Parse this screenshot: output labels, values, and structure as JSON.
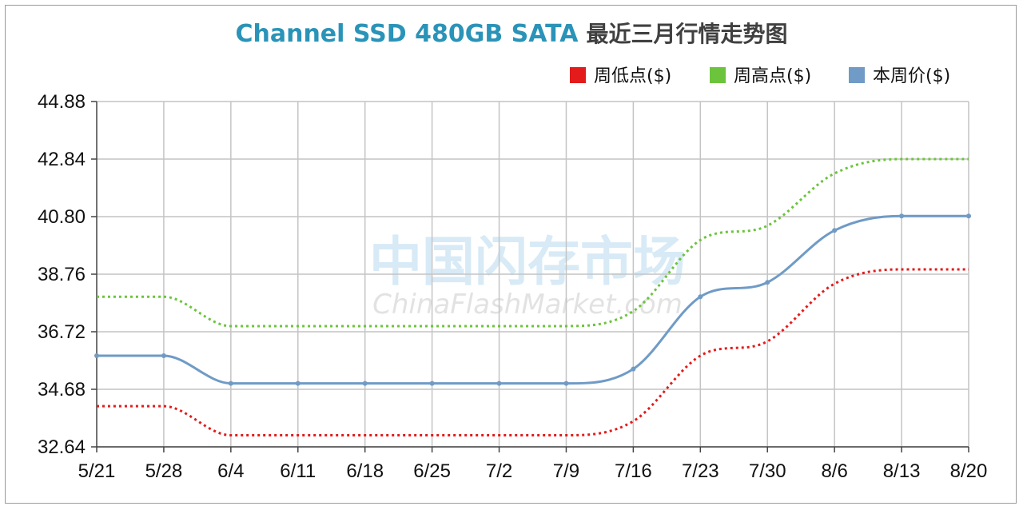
{
  "chart_data": {
    "type": "line",
    "title": "Channel SSD 480GB SATA",
    "title_suffix": "最近三月行情走势图",
    "categories": [
      "5/21",
      "5/28",
      "6/4",
      "6/11",
      "6/18",
      "6/25",
      "7/2",
      "7/9",
      "7/16",
      "7/23",
      "7/30",
      "8/6",
      "8/13",
      "8/20"
    ],
    "yticks": [
      "32.64",
      "34.68",
      "36.72",
      "38.76",
      "40.80",
      "42.84",
      "44.88"
    ],
    "ylim": [
      32.64,
      44.88
    ],
    "grid": true,
    "legend_position": "top-right",
    "series": [
      {
        "name": "周低点($)",
        "color": "#e31b1b",
        "style": "dotted",
        "values": [
          34.08,
          34.08,
          33.05,
          33.05,
          33.05,
          33.05,
          33.05,
          33.05,
          33.55,
          35.87,
          36.38,
          38.42,
          38.93,
          38.93
        ]
      },
      {
        "name": "周高点($)",
        "color": "#6cc43c",
        "style": "dotted",
        "values": [
          37.96,
          37.96,
          36.92,
          36.92,
          36.92,
          36.92,
          36.92,
          36.92,
          37.45,
          39.97,
          40.48,
          42.33,
          42.84,
          42.84
        ]
      },
      {
        "name": "本周价($)",
        "color": "#6f9bc6",
        "style": "solid",
        "values": [
          35.87,
          35.87,
          34.89,
          34.89,
          34.89,
          34.89,
          34.89,
          34.89,
          35.4,
          37.96,
          38.47,
          40.31,
          40.82,
          40.82
        ]
      }
    ]
  },
  "watermark": {
    "line1": "中国闪存市场",
    "line2": "ChinaFlashMarket.com"
  }
}
